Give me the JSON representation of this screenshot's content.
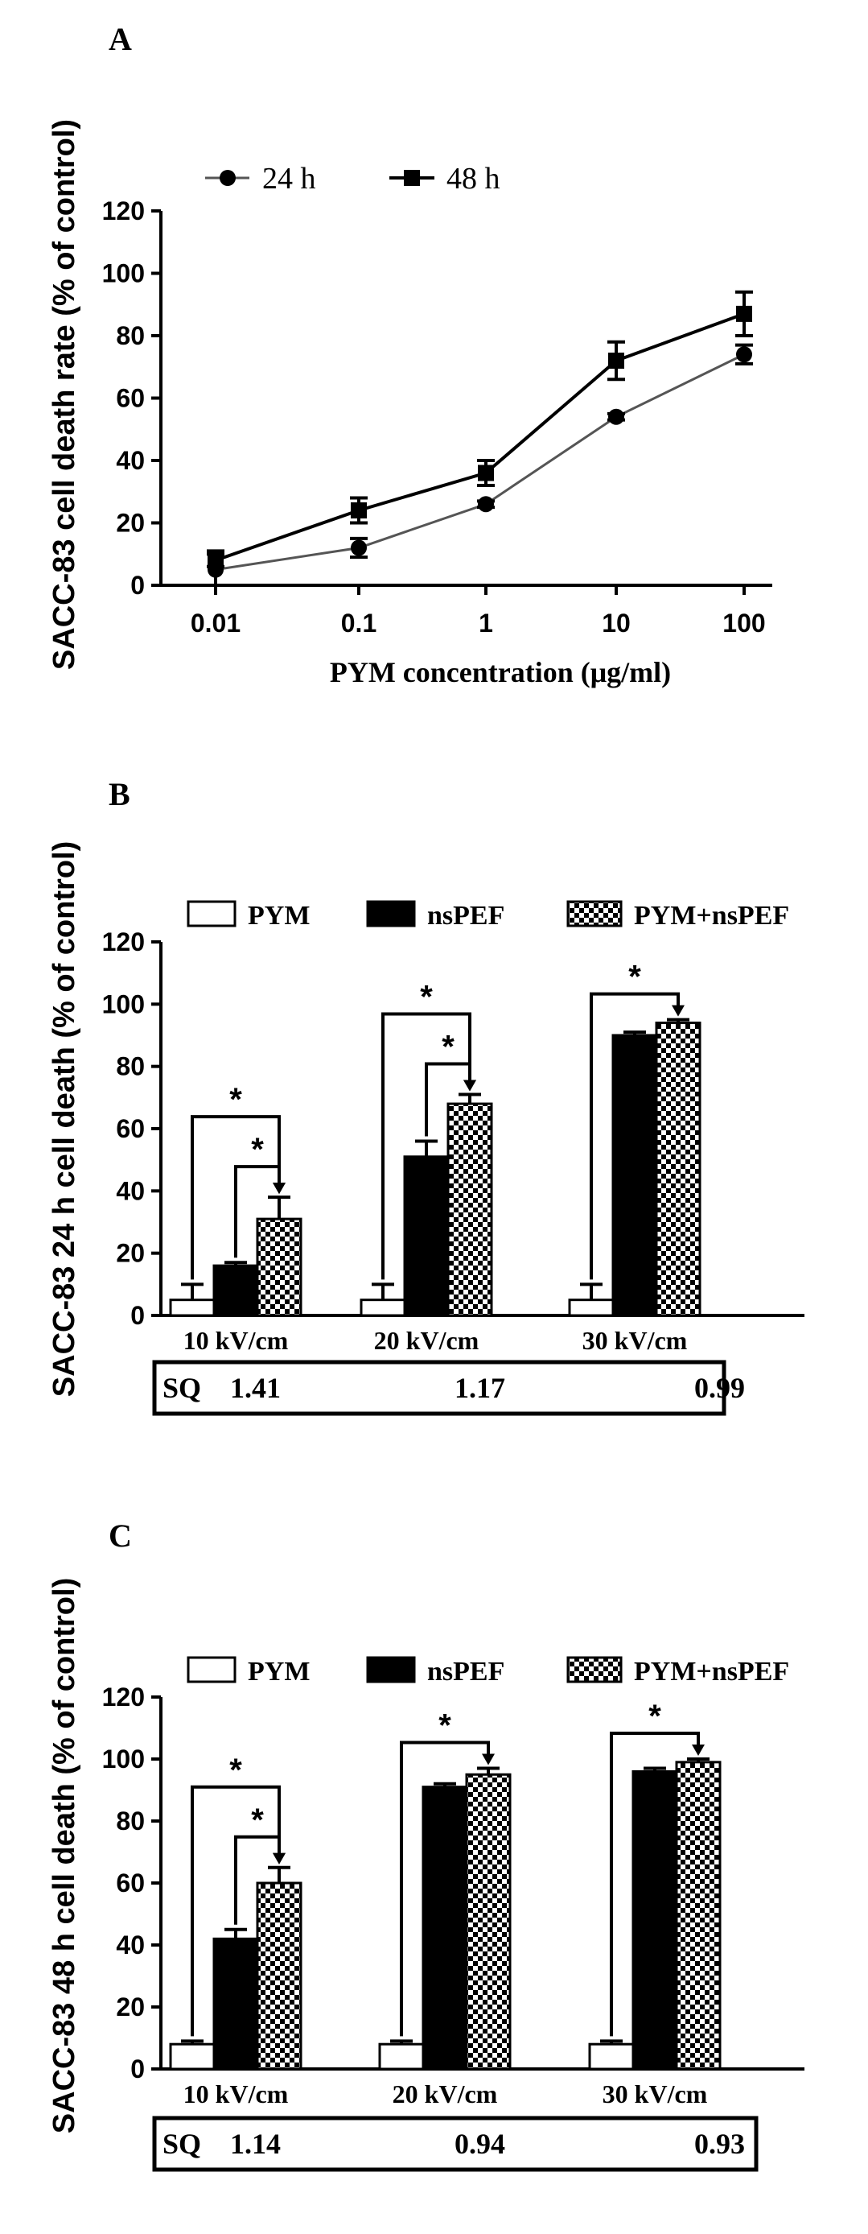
{
  "chart_data": [
    {
      "panel": "A",
      "type": "line",
      "categories": [
        "0.01",
        "0.1",
        "1",
        "10",
        "100"
      ],
      "xlabel": "PYM concentration (μg/ml)",
      "ylabel": "SACC-83 cell death rate (% of control)",
      "ylim": [
        0,
        120
      ],
      "yticks": [
        "0",
        "20",
        "40",
        "60",
        "80",
        "100",
        "120"
      ],
      "legend_position": "top-left",
      "series": [
        {
          "name": "24 h",
          "marker": "circle",
          "color": "#555555",
          "values": [
            5,
            12,
            26,
            54,
            74
          ],
          "errors": [
            6,
            3,
            1,
            1,
            3
          ]
        },
        {
          "name": "48 h",
          "marker": "square",
          "color": "#000000",
          "values": [
            8,
            24,
            36,
            72,
            87
          ],
          "errors": [
            2,
            4,
            4,
            6,
            7
          ]
        }
      ]
    },
    {
      "panel": "B",
      "type": "bar",
      "categories": [
        "10 kV/cm",
        "20 kV/cm",
        "30 kV/cm"
      ],
      "ylabel": "SACC-83 24 h cell death (% of control)",
      "ylim": [
        0,
        120
      ],
      "yticks": [
        "0",
        "20",
        "40",
        "60",
        "80",
        "100",
        "120"
      ],
      "legend_position": "top",
      "series": [
        {
          "name": "PYM",
          "fill": "white",
          "values": [
            5,
            5,
            5
          ],
          "errors": [
            5,
            5,
            5
          ]
        },
        {
          "name": "nsPEF",
          "fill": "black",
          "values": [
            16,
            51,
            90
          ],
          "errors": [
            1,
            5,
            1
          ]
        },
        {
          "name": "PYM+nsPEF",
          "fill": "checker",
          "values": [
            31,
            68,
            94
          ],
          "errors": [
            7,
            3,
            1
          ]
        }
      ],
      "significance": [
        {
          "from": 0,
          "to": 2,
          "group": 0,
          "label": "*"
        },
        {
          "from": 1,
          "to": 2,
          "group": 0,
          "label": "*"
        },
        {
          "from": 0,
          "to": 2,
          "group": 1,
          "label": "*"
        },
        {
          "from": 1,
          "to": 2,
          "group": 1,
          "label": "*"
        },
        {
          "from": 0,
          "to": 2,
          "group": 2,
          "label": "*"
        }
      ],
      "sq_label": "SQ",
      "sq_values": [
        "1.41",
        "1.17",
        "0.99"
      ]
    },
    {
      "panel": "C",
      "type": "bar",
      "categories": [
        "10 kV/cm",
        "20 kV/cm",
        "30 kV/cm"
      ],
      "ylabel": "SACC-83 48 h cell death (% of control)",
      "ylim": [
        0,
        120
      ],
      "yticks": [
        "0",
        "20",
        "40",
        "60",
        "80",
        "100",
        "120"
      ],
      "legend_position": "top",
      "series": [
        {
          "name": "PYM",
          "fill": "white",
          "values": [
            8,
            8,
            8
          ],
          "errors": [
            1,
            1,
            1
          ]
        },
        {
          "name": "nsPEF",
          "fill": "black",
          "values": [
            42,
            91,
            96
          ],
          "errors": [
            3,
            1,
            1
          ]
        },
        {
          "name": "PYM+nsPEF",
          "fill": "checker",
          "values": [
            60,
            95,
            99
          ],
          "errors": [
            5,
            2,
            1
          ]
        }
      ],
      "significance": [
        {
          "from": 0,
          "to": 2,
          "group": 0,
          "label": "*"
        },
        {
          "from": 1,
          "to": 2,
          "group": 0,
          "label": "*"
        },
        {
          "from": 0,
          "to": 2,
          "group": 1,
          "label": "*"
        },
        {
          "from": 0,
          "to": 2,
          "group": 2,
          "label": "*"
        }
      ],
      "sq_label": "SQ",
      "sq_values": [
        "1.14",
        "0.94",
        "0.93"
      ]
    }
  ]
}
